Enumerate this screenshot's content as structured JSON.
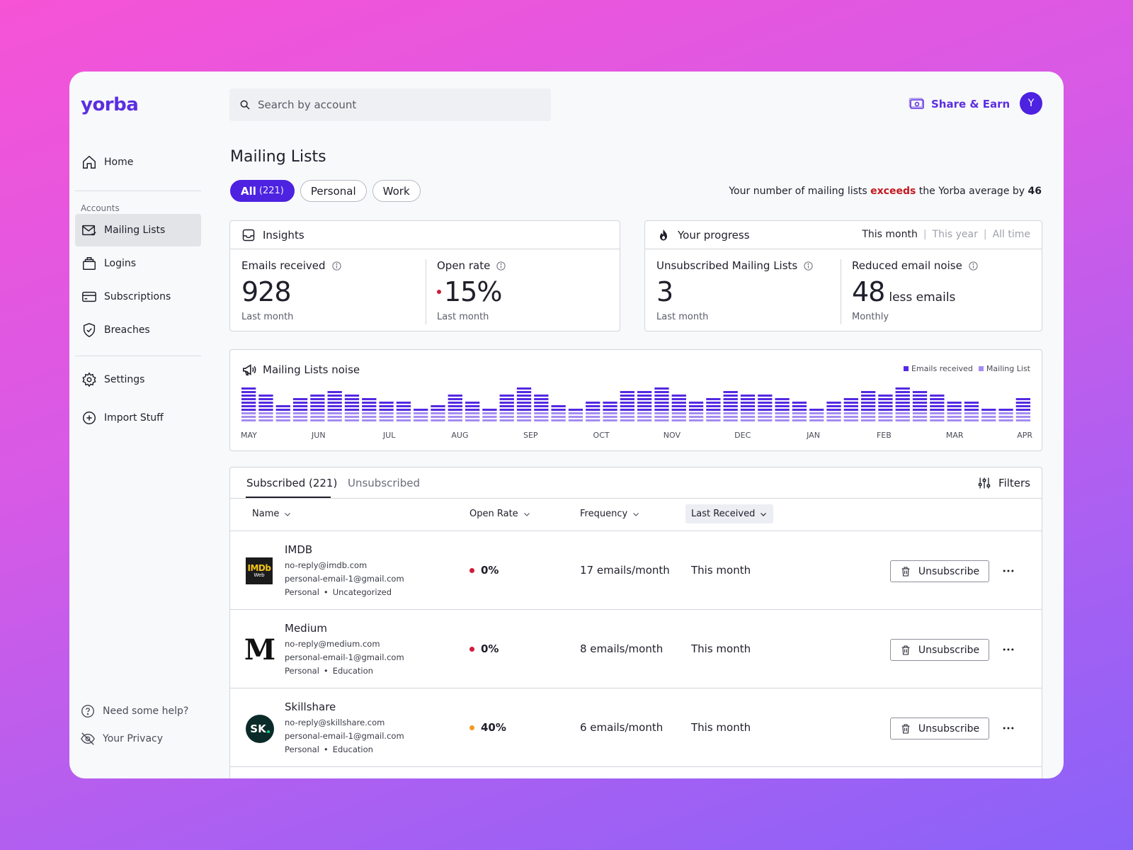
{
  "app": {
    "logo": "yorba"
  },
  "sidebar": {
    "items": [
      {
        "label": "Home",
        "icon": "home-icon"
      },
      {
        "label": "Mailing Lists",
        "icon": "mail-icon"
      },
      {
        "label": "Logins",
        "icon": "logins-icon"
      },
      {
        "label": "Subscriptions",
        "icon": "card-icon"
      },
      {
        "label": "Breaches",
        "icon": "shield-icon"
      },
      {
        "label": "Settings",
        "icon": "gear-icon"
      },
      {
        "label": "Import Stuff",
        "icon": "plus-circle-icon"
      }
    ],
    "section_label": "Accounts",
    "footer": [
      {
        "label": "Need some help?",
        "icon": "help-icon"
      },
      {
        "label": "Your Privacy",
        "icon": "eye-off-icon"
      }
    ]
  },
  "header": {
    "search_placeholder": "Search by account",
    "share_label": "Share & Earn",
    "avatar_initial": "Y"
  },
  "page": {
    "title": "Mailing Lists",
    "chips": [
      {
        "label": "All",
        "count": "(221)"
      },
      {
        "label": "Personal"
      },
      {
        "label": "Work"
      }
    ],
    "notice": {
      "prefix": "Your number of mailing lists",
      "highlight": "exceeds",
      "middle": "the Yorba average by",
      "value": "46"
    }
  },
  "insights": {
    "title": "Insights",
    "emails_received": {
      "label": "Emails received",
      "value": "928",
      "sub": "Last month"
    },
    "open_rate": {
      "label": "Open rate",
      "value": "15%",
      "sub": "Last month"
    }
  },
  "progress": {
    "title": "Your progress",
    "periods": [
      "This month",
      "This year",
      "All time"
    ],
    "separator": "|",
    "unsubscribed": {
      "label": "Unsubscribed Mailing Lists",
      "value": "3",
      "sub": "Last month"
    },
    "reduced": {
      "label": "Reduced email noise",
      "value": "48",
      "unit": "less emails",
      "sub": "Monthly"
    }
  },
  "chart_data": {
    "type": "bar",
    "title": "Mailing Lists noise",
    "legend": [
      "Emails received",
      "Mailing List"
    ],
    "legend_placement": "top-right",
    "colors": {
      "emails": "#5529e2",
      "lists": "#a58cf2"
    },
    "x_labels": [
      "MAY",
      "JUN",
      "JUL",
      "AUG",
      "SEP",
      "OCT",
      "NOV",
      "DEC",
      "JAN",
      "FEB",
      "MAR",
      "APR"
    ],
    "values": [
      10,
      8,
      5,
      7,
      8,
      9,
      8,
      7,
      6,
      6,
      4,
      5,
      8,
      6,
      4,
      8,
      10,
      8,
      5,
      4,
      6,
      6,
      9,
      9,
      10,
      8,
      6,
      7,
      9,
      8,
      8,
      7,
      6,
      4,
      6,
      7,
      9,
      8,
      10,
      9,
      8,
      6,
      6,
      4,
      4,
      7
    ]
  },
  "table": {
    "tabs": [
      {
        "label": "Subscribed (221)"
      },
      {
        "label": "Unsubscribed"
      }
    ],
    "filters_label": "Filters",
    "columns": [
      "Name",
      "Open Rate",
      "Frequency",
      "Last Received"
    ],
    "unsubscribe_label": "Unsubscribe",
    "rows": [
      {
        "name": "IMDB",
        "email": "no-reply@imdb.com",
        "account": "personal-email-1@gmail.com",
        "tag1": "Personal",
        "tag2": "Uncategorized",
        "rate": "0%",
        "rate_color": "#d11a3a",
        "frequency": "17 emails/month",
        "last": "This month",
        "logo_text": "IMDb",
        "logo_sub": "Web"
      },
      {
        "name": "Medium",
        "email": "no-reply@medium.com",
        "account": "personal-email-1@gmail.com",
        "tag1": "Personal",
        "tag2": "Education",
        "rate": "0%",
        "rate_color": "#d11a3a",
        "frequency": "8 emails/month",
        "last": "This month",
        "logo_text": "M"
      },
      {
        "name": "Skillshare",
        "email": "no-reply@skillshare.com",
        "account": "personal-email-1@gmail.com",
        "tag1": "Personal",
        "tag2": "Education",
        "rate": "40%",
        "rate_color": "#f29a1f",
        "frequency": "6 emails/month",
        "last": "This month",
        "logo_text": "SK"
      }
    ]
  }
}
